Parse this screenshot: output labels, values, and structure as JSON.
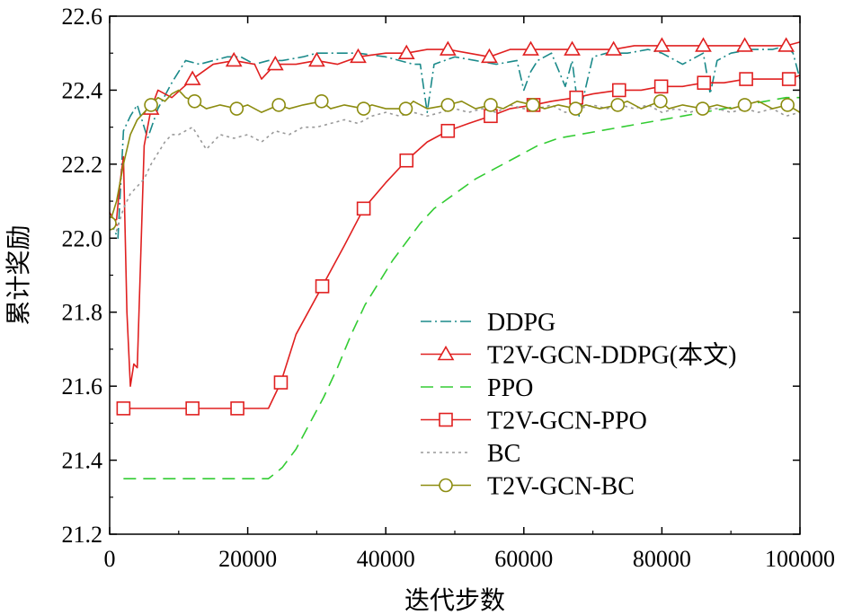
{
  "chart_data": {
    "type": "line",
    "title": "",
    "xlabel": "迭代步数",
    "ylabel": "累计奖励",
    "xlim": [
      0,
      100000
    ],
    "ylim": [
      21.2,
      22.6
    ],
    "x_ticks": [
      0,
      20000,
      40000,
      60000,
      80000,
      100000
    ],
    "y_ticks": [
      21.2,
      21.4,
      21.6,
      21.8,
      22.0,
      22.2,
      22.4,
      22.6
    ],
    "x_tick_labels": [
      "0",
      "20000",
      "40000",
      "60000",
      "80000",
      "100000"
    ],
    "y_tick_labels": [
      "21.2",
      "21.4",
      "21.6",
      "21.8",
      "22.0",
      "22.2",
      "22.4",
      "22.6"
    ],
    "grid": false,
    "legend_position": "bottom-right",
    "series": [
      {
        "name": "DDPG",
        "color": "#1b8a8a",
        "dash": "12,4,2,4",
        "marker": "none",
        "x": [
          0,
          1200,
          2000,
          3000,
          4000,
          5500,
          7000,
          9000,
          11000,
          13000,
          15000,
          17000,
          19000,
          21000,
          23000,
          25000,
          28000,
          30000,
          33000,
          36000,
          40000,
          44000,
          45000,
          46000,
          47000,
          50000,
          53000,
          56000,
          59000,
          60000,
          61000,
          62000,
          64000,
          66000,
          67000,
          68000,
          70000,
          72000,
          75000,
          78000,
          80000,
          83000,
          86000,
          87000,
          88000,
          90000,
          93000,
          96000,
          98000,
          99000,
          100000
        ],
        "y": [
          22.05,
          22.0,
          22.29,
          22.33,
          22.36,
          22.27,
          22.35,
          22.42,
          22.48,
          22.47,
          22.48,
          22.49,
          22.49,
          22.47,
          22.48,
          22.48,
          22.49,
          22.5,
          22.5,
          22.5,
          22.49,
          22.47,
          22.47,
          22.34,
          22.47,
          22.49,
          22.48,
          22.47,
          22.48,
          22.4,
          22.45,
          22.48,
          22.5,
          22.41,
          22.48,
          22.33,
          22.49,
          22.5,
          22.5,
          22.51,
          22.5,
          22.47,
          22.5,
          22.39,
          22.48,
          22.5,
          22.51,
          22.51,
          22.52,
          22.5,
          22.43
        ]
      },
      {
        "name": "T2V-GCN-DDPG(本文)",
        "color": "#e02020",
        "dash": "",
        "marker": "triangle",
        "x": [
          0,
          1000,
          1500,
          2000,
          2500,
          3000,
          3500,
          4000,
          5000,
          6000,
          7000,
          9000,
          12000,
          15000,
          18000,
          21000,
          22000,
          24000,
          27000,
          30000,
          33000,
          36000,
          40000,
          43000,
          46000,
          49000,
          52000,
          55000,
          58000,
          61000,
          64000,
          67000,
          70000,
          73000,
          76000,
          80000,
          83000,
          86000,
          89000,
          92000,
          95000,
          98000,
          100000
        ],
        "y": [
          22.05,
          22.05,
          22.15,
          22.22,
          21.8,
          21.6,
          21.66,
          21.65,
          22.25,
          22.35,
          22.4,
          22.38,
          22.43,
          22.47,
          22.48,
          22.47,
          22.43,
          22.47,
          22.47,
          22.48,
          22.47,
          22.49,
          22.5,
          22.5,
          22.51,
          22.51,
          22.5,
          22.49,
          22.51,
          22.51,
          22.51,
          22.51,
          22.51,
          22.51,
          22.52,
          22.52,
          22.52,
          22.52,
          22.52,
          22.52,
          22.52,
          22.52,
          22.53
        ]
      },
      {
        "name": "PPO",
        "color": "#33cc33",
        "dash": "14,8",
        "marker": "none",
        "x": [
          2000,
          10000,
          20000,
          23000,
          25000,
          27000,
          29000,
          31000,
          33000,
          35000,
          37000,
          39000,
          41000,
          43000,
          45000,
          47000,
          50000,
          53000,
          56000,
          59000,
          62000,
          65000,
          68000,
          71000,
          74000,
          77000,
          80000,
          83000,
          86000,
          89000,
          92000,
          95000,
          98000,
          100000
        ],
        "y": [
          21.35,
          21.35,
          21.35,
          21.35,
          21.38,
          21.43,
          21.5,
          21.57,
          21.65,
          21.74,
          21.82,
          21.88,
          21.94,
          21.99,
          22.04,
          22.08,
          22.12,
          22.16,
          22.19,
          22.22,
          22.25,
          22.27,
          22.28,
          22.29,
          22.3,
          22.31,
          22.32,
          22.33,
          22.34,
          22.35,
          22.36,
          22.37,
          22.38,
          22.38
        ]
      },
      {
        "name": "T2V-GCN-PPO",
        "color": "#e02020",
        "dash": "",
        "marker": "square",
        "x": [
          2000,
          6000,
          12000,
          18500,
          23000,
          24800,
          27000,
          30800,
          34000,
          36800,
          40000,
          43000,
          46000,
          49000,
          52000,
          55200,
          58000,
          61400,
          64000,
          67600,
          70000,
          73800,
          77000,
          79900,
          83000,
          86100,
          89000,
          92200,
          95000,
          98400,
          100000
        ],
        "y": [
          21.54,
          21.54,
          21.54,
          21.54,
          21.54,
          21.61,
          21.74,
          21.87,
          21.98,
          22.08,
          22.15,
          22.21,
          22.26,
          22.29,
          22.31,
          22.33,
          22.35,
          22.36,
          22.37,
          22.38,
          22.39,
          22.4,
          22.4,
          22.41,
          22.41,
          22.42,
          22.42,
          22.43,
          22.43,
          22.43,
          22.44
        ]
      },
      {
        "name": "BC",
        "color": "#999999",
        "dash": "3,4",
        "marker": "none",
        "x": [
          0,
          1000,
          2000,
          3000,
          4000,
          5000,
          6000,
          7000,
          8000,
          9000,
          10000,
          12000,
          14000,
          16000,
          18000,
          20000,
          22000,
          24000,
          26000,
          28000,
          30000,
          32000,
          34000,
          36000,
          38000,
          40000,
          42000,
          44000,
          46000,
          48000,
          50000,
          52000,
          54000,
          56000,
          58000,
          60000,
          62000,
          64000,
          66000,
          68000,
          70000,
          72000,
          74000,
          76000,
          78000,
          80000,
          82000,
          84000,
          86000,
          88000,
          90000,
          92000,
          94000,
          96000,
          98000,
          100000
        ],
        "y": [
          22.05,
          22.02,
          22.08,
          22.12,
          22.14,
          22.16,
          22.2,
          22.23,
          22.26,
          22.28,
          22.28,
          22.3,
          22.24,
          22.28,
          22.27,
          22.28,
          22.26,
          22.29,
          22.28,
          22.3,
          22.3,
          22.31,
          22.32,
          22.31,
          22.33,
          22.34,
          22.33,
          22.34,
          22.33,
          22.34,
          22.35,
          22.34,
          22.35,
          22.34,
          22.36,
          22.35,
          22.35,
          22.36,
          22.34,
          22.35,
          22.36,
          22.35,
          22.36,
          22.35,
          22.36,
          22.34,
          22.35,
          22.34,
          22.35,
          22.35,
          22.34,
          22.35,
          22.34,
          22.35,
          22.33,
          22.34
        ]
      },
      {
        "name": "T2V-GCN-BC",
        "color": "#8c8c10",
        "dash": "",
        "marker": "circle",
        "x": [
          0,
          1000,
          2000,
          3000,
          4000,
          5000,
          6000,
          7000,
          8000,
          9000,
          10000,
          11000,
          12300,
          14000,
          16000,
          18400,
          20000,
          22000,
          24500,
          26000,
          28000,
          30700,
          32000,
          34000,
          36800,
          38000,
          40000,
          42900,
          44000,
          46000,
          49000,
          51000,
          53000,
          55200,
          57000,
          59000,
          61300,
          63000,
          65000,
          67500,
          69000,
          71000,
          73600,
          75000,
          77000,
          79800,
          81000,
          83000,
          85900,
          88000,
          90000,
          92000,
          94000,
          96000,
          98200,
          100000
        ],
        "y": [
          22.04,
          22.1,
          22.2,
          22.28,
          22.32,
          22.34,
          22.36,
          22.38,
          22.37,
          22.39,
          22.4,
          22.38,
          22.37,
          22.35,
          22.36,
          22.35,
          22.36,
          22.34,
          22.36,
          22.35,
          22.36,
          22.37,
          22.35,
          22.36,
          22.35,
          22.36,
          22.35,
          22.35,
          22.37,
          22.35,
          22.36,
          22.37,
          22.35,
          22.36,
          22.35,
          22.37,
          22.36,
          22.35,
          22.36,
          22.35,
          22.36,
          22.35,
          22.36,
          22.37,
          22.35,
          22.37,
          22.35,
          22.36,
          22.35,
          22.36,
          22.35,
          22.36,
          22.37,
          22.35,
          22.36,
          22.34
        ]
      }
    ]
  }
}
